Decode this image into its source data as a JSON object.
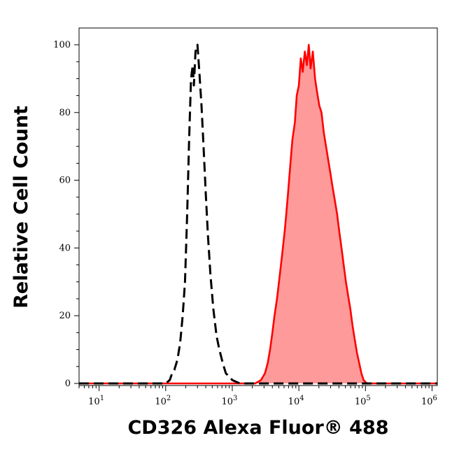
{
  "chart_data": {
    "type": "area",
    "xlabel": "CD326 Alexa Fluor® 488",
    "ylabel": "Relative Cell Count",
    "x_scale": "log10",
    "xlim": [
      5,
      1200000
    ],
    "ylim": [
      0,
      100
    ],
    "x_ticks": [
      {
        "value": 10,
        "base": "10",
        "exp": "1"
      },
      {
        "value": 100,
        "base": "10",
        "exp": "2"
      },
      {
        "value": 1000,
        "base": "10",
        "exp": "3"
      },
      {
        "value": 10000,
        "base": "10",
        "exp": "4"
      },
      {
        "value": 100000,
        "base": "10",
        "exp": "5"
      },
      {
        "value": 1000000,
        "base": "10",
        "exp": "6"
      }
    ],
    "y_ticks": [
      {
        "value": 0,
        "label": "0"
      },
      {
        "value": 20,
        "label": "20"
      },
      {
        "value": 40,
        "label": "40"
      },
      {
        "value": 60,
        "label": "60"
      },
      {
        "value": 80,
        "label": "80"
      },
      {
        "value": 100,
        "label": "100"
      }
    ],
    "grid": false,
    "legend": "none",
    "series": [
      {
        "style": "dashed-line",
        "color": "#000000",
        "points": [
          [
            5,
            0
          ],
          [
            100,
            0
          ],
          [
            115,
            1
          ],
          [
            125,
            3
          ],
          [
            135,
            4
          ],
          [
            150,
            7
          ],
          [
            165,
            12
          ],
          [
            180,
            20
          ],
          [
            195,
            30
          ],
          [
            210,
            50
          ],
          [
            225,
            72
          ],
          [
            240,
            90
          ],
          [
            255,
            94
          ],
          [
            265,
            88
          ],
          [
            280,
            98
          ],
          [
            300,
            100
          ],
          [
            320,
            92
          ],
          [
            345,
            82
          ],
          [
            370,
            70
          ],
          [
            400,
            56
          ],
          [
            430,
            44
          ],
          [
            470,
            32
          ],
          [
            520,
            22
          ],
          [
            580,
            14
          ],
          [
            640,
            10
          ],
          [
            720,
            6
          ],
          [
            800,
            3
          ],
          [
            900,
            2
          ],
          [
            1000,
            1
          ],
          [
            1300,
            0
          ],
          [
            1200000,
            0
          ]
        ]
      },
      {
        "style": "filled-area",
        "color": "#ff0000",
        "fill": "#ff9a9a",
        "points": [
          [
            5,
            0
          ],
          [
            2200,
            0
          ],
          [
            2700,
            1
          ],
          [
            3100,
            3
          ],
          [
            3400,
            6
          ],
          [
            3700,
            10
          ],
          [
            4000,
            15
          ],
          [
            4300,
            20
          ],
          [
            4700,
            25
          ],
          [
            5100,
            31
          ],
          [
            5600,
            38
          ],
          [
            6200,
            46
          ],
          [
            6800,
            55
          ],
          [
            7400,
            64
          ],
          [
            8000,
            72
          ],
          [
            8700,
            77
          ],
          [
            9300,
            85
          ],
          [
            10000,
            88
          ],
          [
            10700,
            96
          ],
          [
            11400,
            92
          ],
          [
            12300,
            98
          ],
          [
            13200,
            94
          ],
          [
            14100,
            100
          ],
          [
            15000,
            93
          ],
          [
            16200,
            98
          ],
          [
            17500,
            90
          ],
          [
            18800,
            86
          ],
          [
            20300,
            82
          ],
          [
            21900,
            80
          ],
          [
            23700,
            74
          ],
          [
            25600,
            70
          ],
          [
            27600,
            66
          ],
          [
            29800,
            62
          ],
          [
            32100,
            58
          ],
          [
            34700,
            54
          ],
          [
            37500,
            50
          ],
          [
            40400,
            45
          ],
          [
            43700,
            40
          ],
          [
            47100,
            35
          ],
          [
            50900,
            30
          ],
          [
            54900,
            26
          ],
          [
            59300,
            22
          ],
          [
            64000,
            17
          ],
          [
            69100,
            13
          ],
          [
            74600,
            9
          ],
          [
            80600,
            6
          ],
          [
            87000,
            3
          ],
          [
            94000,
            1
          ],
          [
            105000,
            0
          ],
          [
            1200000,
            0
          ]
        ]
      }
    ]
  }
}
